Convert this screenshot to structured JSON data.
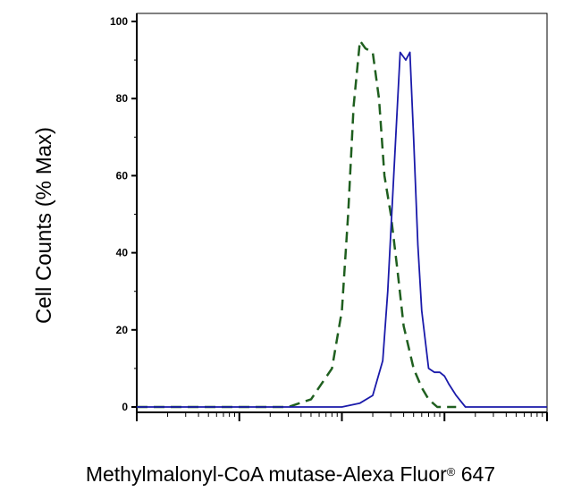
{
  "chart_data": {
    "type": "line",
    "title": "",
    "xlabel": "Methylmalonyl-CoA mutase-Alexa Fluor",
    "xlabel_superscript": "®",
    "xlabel_suffix": " 647",
    "ylabel": "Cell Counts (% Max)",
    "x_scale": "log",
    "xlim": [
      1,
      10000
    ],
    "ylim": [
      0,
      100
    ],
    "y_ticks": [
      "0",
      "20",
      "40",
      "60",
      "80",
      "100"
    ],
    "x_tick_labels_shown": false,
    "grid": false,
    "legend": "none",
    "series": [
      {
        "color": "#1f5f1f",
        "line_style": "dashed",
        "x": [
          1,
          20,
          30,
          50,
          80,
          100,
          115,
          130,
          150,
          170,
          200,
          230,
          260,
          300,
          350,
          400,
          500,
          600,
          700,
          850,
          1000,
          1300
        ],
        "y": [
          0,
          0,
          0,
          2,
          10,
          25,
          50,
          78,
          95,
          93,
          92,
          80,
          60,
          50,
          35,
          21,
          10,
          5,
          2,
          0,
          0,
          0
        ]
      },
      {
        "color": "#1a1aaa",
        "line_style": "solid",
        "x": [
          1,
          50,
          100,
          150,
          200,
          250,
          280,
          320,
          370,
          420,
          460,
          500,
          550,
          600,
          700,
          800,
          900,
          1000,
          1100,
          1300,
          1600,
          2000,
          10000
        ],
        "y": [
          0,
          0,
          0,
          1,
          3,
          12,
          30,
          60,
          92,
          90,
          92,
          70,
          42,
          25,
          10,
          9,
          9,
          8,
          6,
          3,
          0,
          0,
          0
        ]
      }
    ]
  }
}
